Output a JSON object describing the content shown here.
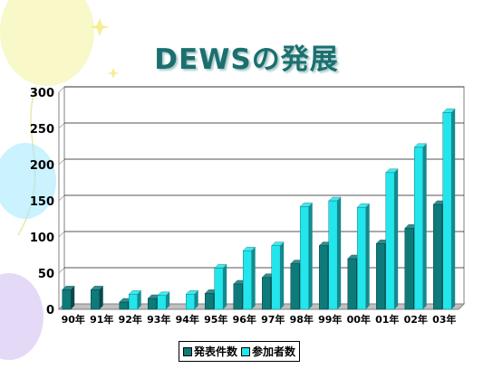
{
  "title": "DEWSの発展",
  "colors": {
    "series1": "#0e7a7a",
    "series2": "#22e6ec",
    "title": "#1c6f6f",
    "decor_yellow": "#f2f29a",
    "decor_cyan": "#9fe8ff",
    "decor_purple": "#c9b6f0"
  },
  "chart_data": {
    "type": "bar",
    "title": "DEWSの発展",
    "categories": [
      "90年",
      "91年",
      "92年",
      "93年",
      "94年",
      "95年",
      "96年",
      "97年",
      "98年",
      "99年",
      "00年",
      "01年",
      "02年",
      "03年"
    ],
    "series": [
      {
        "name": "発表件数",
        "values": [
          27,
          27,
          10,
          15,
          0,
          22,
          35,
          44,
          63,
          88,
          70,
          91,
          112,
          145
        ]
      },
      {
        "name": "参加者数",
        "values": [
          0,
          0,
          21,
          19,
          21,
          57,
          81,
          88,
          142,
          150,
          141,
          189,
          224,
          272
        ]
      }
    ],
    "ylim": [
      0,
      300
    ],
    "yticks": [
      0,
      50,
      100,
      150,
      200,
      250,
      300
    ],
    "grid": true,
    "legend": "bottom"
  }
}
